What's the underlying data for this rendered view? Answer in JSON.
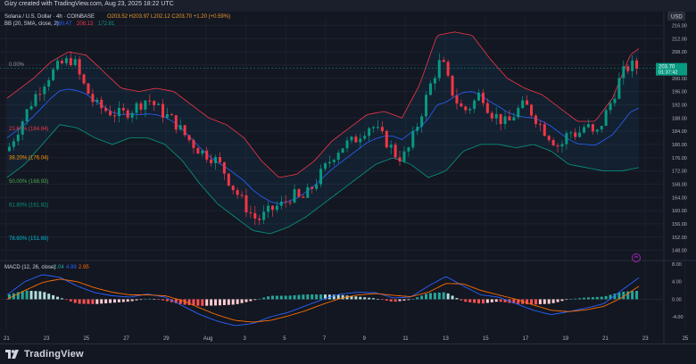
{
  "header": {
    "credit": "Gizy created with TradingView.com, Aug 23, 2025 18:22 UTC"
  },
  "legend": {
    "symbol": "Solana / U.S. Dollar · 4h · COINBASE",
    "ohlc": "O203.52 H203.97 L202.12 C203.70 +1.20 (+0.59%)",
    "bb_label": "BB (20, SMA, close, 2)",
    "bb_values": [
      "190.47",
      "208.13",
      "172.81"
    ]
  },
  "currency_badge": "USD",
  "price_badge": {
    "value": "203.70",
    "sub": "01:37:42"
  },
  "fib_levels": [
    {
      "label": "0.00%",
      "price": 204.3,
      "color": "#9598a1"
    },
    {
      "label": "23.60% (184.84)",
      "price": 184.84,
      "color": "#f23645"
    },
    {
      "label": "38.20% (176.04)",
      "price": 176.04,
      "color": "#ff9800"
    },
    {
      "label": "50.00% (168.93)",
      "price": 168.93,
      "color": "#4caf50"
    },
    {
      "label": "61.80% (161.82)",
      "price": 161.82,
      "color": "#089981"
    },
    {
      "label": "78.60% (151.69)",
      "price": 151.69,
      "color": "#00bcd4"
    }
  ],
  "macd_legend": {
    "label": "MACD (12, 26, close)",
    "values": [
      "2.04",
      "4.99",
      "2.95"
    ]
  },
  "footer": {
    "brand": "TradingView"
  },
  "chart_data": {
    "type": "candlestick",
    "price_axis": {
      "ylim": [
        146,
        218
      ],
      "ticks": [
        "216.00",
        "212.00",
        "208.00",
        "204.00",
        "200.00",
        "196.00",
        "192.00",
        "188.00",
        "184.00",
        "180.00",
        "176.00",
        "172.00",
        "168.00",
        "164.00",
        "160.00",
        "156.00",
        "152.00",
        "148.00"
      ]
    },
    "macd_axis": {
      "ylim": [
        -7,
        8
      ],
      "ticks": [
        "8.00",
        "4.00",
        "0.00",
        "-4.00"
      ]
    },
    "x_tick_labels": [
      "21",
      "23",
      "25",
      "27",
      "29",
      "Aug",
      "3",
      "5",
      "7",
      "9",
      "11",
      "13",
      "15",
      "17",
      "19",
      "21",
      "23",
      "25"
    ],
    "price_path": [
      [
        0,
        178
      ],
      [
        3,
        186
      ],
      [
        6,
        194
      ],
      [
        9,
        200
      ],
      [
        12,
        204
      ],
      [
        15,
        206
      ],
      [
        17,
        199
      ],
      [
        20,
        192
      ],
      [
        23,
        190
      ],
      [
        26,
        189
      ],
      [
        29,
        191
      ],
      [
        32,
        194
      ],
      [
        35,
        190
      ],
      [
        38,
        187
      ],
      [
        41,
        182
      ],
      [
        44,
        178
      ],
      [
        47,
        176
      ],
      [
        49,
        173
      ],
      [
        51,
        168
      ],
      [
        53,
        164
      ],
      [
        55,
        160
      ],
      [
        57,
        157
      ],
      [
        59,
        159
      ],
      [
        61,
        161
      ],
      [
        63,
        162
      ],
      [
        65,
        165
      ],
      [
        67,
        163
      ],
      [
        69,
        166
      ],
      [
        71,
        170
      ],
      [
        73,
        174
      ],
      [
        75,
        178
      ],
      [
        77,
        180
      ],
      [
        79,
        181
      ],
      [
        81,
        184
      ],
      [
        83,
        186
      ],
      [
        85,
        183
      ],
      [
        87,
        180
      ],
      [
        89,
        176
      ],
      [
        91,
        177
      ],
      [
        93,
        184
      ],
      [
        95,
        192
      ],
      [
        97,
        200
      ],
      [
        99,
        206
      ],
      [
        100,
        201
      ],
      [
        102,
        194
      ],
      [
        104,
        190
      ],
      [
        106,
        192
      ],
      [
        108,
        196
      ],
      [
        110,
        190
      ],
      [
        112,
        188
      ],
      [
        114,
        186
      ],
      [
        116,
        190
      ],
      [
        118,
        192
      ],
      [
        120,
        189
      ],
      [
        122,
        185
      ],
      [
        124,
        182
      ],
      [
        126,
        179
      ],
      [
        128,
        184
      ],
      [
        130,
        183
      ],
      [
        132,
        186
      ],
      [
        134,
        182
      ],
      [
        136,
        188
      ],
      [
        138,
        194
      ],
      [
        140,
        201
      ],
      [
        142,
        204
      ],
      [
        144,
        203
      ]
    ],
    "bb_upper": [
      [
        0,
        194
      ],
      [
        6,
        200
      ],
      [
        10,
        205
      ],
      [
        14,
        208
      ],
      [
        18,
        207
      ],
      [
        22,
        202
      ],
      [
        26,
        197
      ],
      [
        30,
        196
      ],
      [
        34,
        197
      ],
      [
        38,
        196
      ],
      [
        42,
        192
      ],
      [
        46,
        188
      ],
      [
        50,
        186
      ],
      [
        54,
        182
      ],
      [
        58,
        175
      ],
      [
        62,
        170
      ],
      [
        66,
        171
      ],
      [
        70,
        175
      ],
      [
        74,
        181
      ],
      [
        78,
        185
      ],
      [
        82,
        189
      ],
      [
        86,
        190
      ],
      [
        90,
        188
      ],
      [
        94,
        198
      ],
      [
        98,
        213
      ],
      [
        102,
        214
      ],
      [
        106,
        213
      ],
      [
        110,
        206
      ],
      [
        114,
        200
      ],
      [
        118,
        197
      ],
      [
        122,
        195
      ],
      [
        126,
        191
      ],
      [
        130,
        187
      ],
      [
        134,
        187
      ],
      [
        138,
        194
      ],
      [
        142,
        207
      ],
      [
        144,
        209
      ]
    ],
    "bb_lower": [
      [
        0,
        170
      ],
      [
        4,
        174
      ],
      [
        8,
        180
      ],
      [
        12,
        186
      ],
      [
        16,
        185
      ],
      [
        20,
        182
      ],
      [
        24,
        180
      ],
      [
        28,
        182
      ],
      [
        32,
        182
      ],
      [
        36,
        180
      ],
      [
        40,
        175
      ],
      [
        44,
        168
      ],
      [
        48,
        162
      ],
      [
        52,
        158
      ],
      [
        56,
        154
      ],
      [
        60,
        153
      ],
      [
        64,
        155
      ],
      [
        68,
        158
      ],
      [
        72,
        162
      ],
      [
        76,
        166
      ],
      [
        80,
        170
      ],
      [
        84,
        174
      ],
      [
        88,
        176
      ],
      [
        92,
        174
      ],
      [
        96,
        170
      ],
      [
        100,
        172
      ],
      [
        104,
        178
      ],
      [
        108,
        180
      ],
      [
        112,
        180
      ],
      [
        116,
        179
      ],
      [
        120,
        180
      ],
      [
        124,
        178
      ],
      [
        128,
        174
      ],
      [
        132,
        173
      ],
      [
        136,
        172
      ],
      [
        140,
        172
      ],
      [
        144,
        173
      ]
    ],
    "macd_line": [
      [
        0,
        1
      ],
      [
        4,
        4
      ],
      [
        8,
        5.6
      ],
      [
        12,
        5
      ],
      [
        16,
        3
      ],
      [
        20,
        1.5
      ],
      [
        24,
        0.8
      ],
      [
        28,
        0.5
      ],
      [
        32,
        1.2
      ],
      [
        36,
        0.5
      ],
      [
        40,
        -1.5
      ],
      [
        44,
        -3.5
      ],
      [
        48,
        -5
      ],
      [
        52,
        -6
      ],
      [
        56,
        -5.5
      ],
      [
        60,
        -4
      ],
      [
        64,
        -3
      ],
      [
        68,
        -1.5
      ],
      [
        72,
        0
      ],
      [
        76,
        1.2
      ],
      [
        80,
        1.6
      ],
      [
        84,
        1.5
      ],
      [
        88,
        0.3
      ],
      [
        92,
        0.5
      ],
      [
        96,
        3
      ],
      [
        100,
        5.2
      ],
      [
        104,
        3
      ],
      [
        108,
        1
      ],
      [
        112,
        0.5
      ],
      [
        116,
        -1
      ],
      [
        120,
        -2.5
      ],
      [
        124,
        -3.5
      ],
      [
        128,
        -2.8
      ],
      [
        132,
        -2
      ],
      [
        136,
        -1
      ],
      [
        140,
        2
      ],
      [
        144,
        4.9
      ]
    ],
    "signal_line": [
      [
        0,
        0
      ],
      [
        4,
        2
      ],
      [
        8,
        3.8
      ],
      [
        12,
        4.6
      ],
      [
        16,
        4
      ],
      [
        20,
        2.6
      ],
      [
        24,
        1.6
      ],
      [
        28,
        1
      ],
      [
        32,
        1
      ],
      [
        36,
        0.8
      ],
      [
        40,
        -0.3
      ],
      [
        44,
        -2
      ],
      [
        48,
        -3.6
      ],
      [
        52,
        -4.8
      ],
      [
        56,
        -5.2
      ],
      [
        60,
        -4.8
      ],
      [
        64,
        -3.8
      ],
      [
        68,
        -2.6
      ],
      [
        72,
        -1.1
      ],
      [
        76,
        0.2
      ],
      [
        80,
        1
      ],
      [
        84,
        1.3
      ],
      [
        88,
        0.9
      ],
      [
        92,
        0.6
      ],
      [
        96,
        1.6
      ],
      [
        100,
        3.6
      ],
      [
        104,
        3.5
      ],
      [
        108,
        2
      ],
      [
        112,
        1
      ],
      [
        116,
        0
      ],
      [
        120,
        -1.3
      ],
      [
        124,
        -2.5
      ],
      [
        128,
        -2.8
      ],
      [
        132,
        -2.4
      ],
      [
        136,
        -1.6
      ],
      [
        140,
        0.3
      ],
      [
        144,
        2.95
      ]
    ]
  }
}
